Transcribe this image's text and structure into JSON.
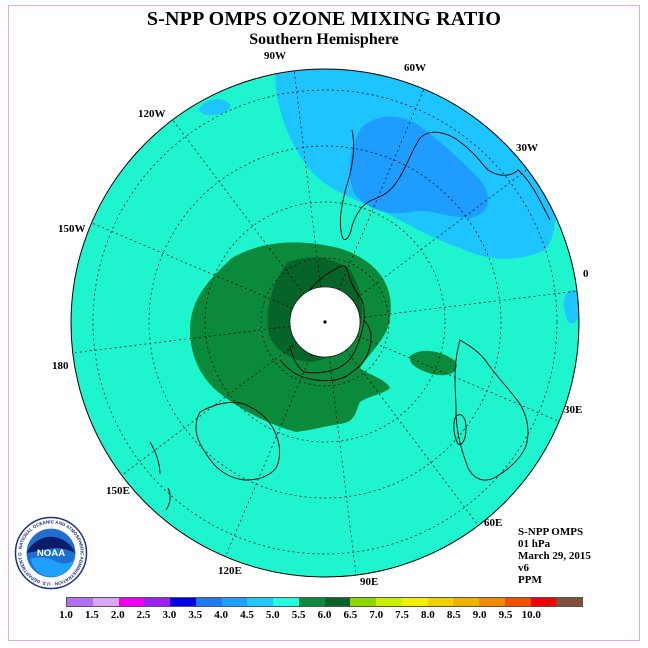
{
  "title": "S-NPP OMPS OZONE MIXING RATIO",
  "subtitle": "Southern Hemisphere",
  "longitude_labels": [
    "90W",
    "60W",
    "30W",
    "0",
    "30E",
    "60E",
    "90E",
    "120E",
    "150E",
    "180",
    "150W",
    "120W"
  ],
  "info": {
    "instrument": "S-NPP OMPS",
    "level": "01 hPa",
    "date": "March 29, 2015",
    "version": "v6",
    "units": "PPM"
  },
  "colorbar": {
    "colors": [
      "#b070f0",
      "#d8a8f8",
      "#f000f0",
      "#a020f0",
      "#0000e0",
      "#1e78f0",
      "#1ea0ff",
      "#20c8ff",
      "#20ffd8",
      "#0a8a3a",
      "#066428",
      "#8ed800",
      "#c8f000",
      "#f0f000",
      "#f0d000",
      "#f0b000",
      "#f08800",
      "#f05000",
      "#f00000",
      "#80503a"
    ],
    "tick_labels": [
      "1.0",
      "1.5",
      "2.0",
      "2.5",
      "3.0",
      "3.5",
      "4.0",
      "4.5",
      "5.0",
      "5.5",
      "6.0",
      "6.5",
      "7.0",
      "7.5",
      "8.0",
      "8.5",
      "9.0",
      "9.5",
      "10.0"
    ]
  },
  "map_colors": {
    "background": "#1ef5cf",
    "light_blue": "#1ec4ff",
    "medium_blue": "#1e9cff",
    "green": "#0a8a3a",
    "dark_green": "#066428",
    "pole": "#ffffff"
  },
  "logo": {
    "text": "NOAA",
    "ring_text": "NATIONAL OCEANIC AND ATMOSPHERIC ADMINISTRATION · U.S. DEPARTMENT OF COMMERCE"
  }
}
